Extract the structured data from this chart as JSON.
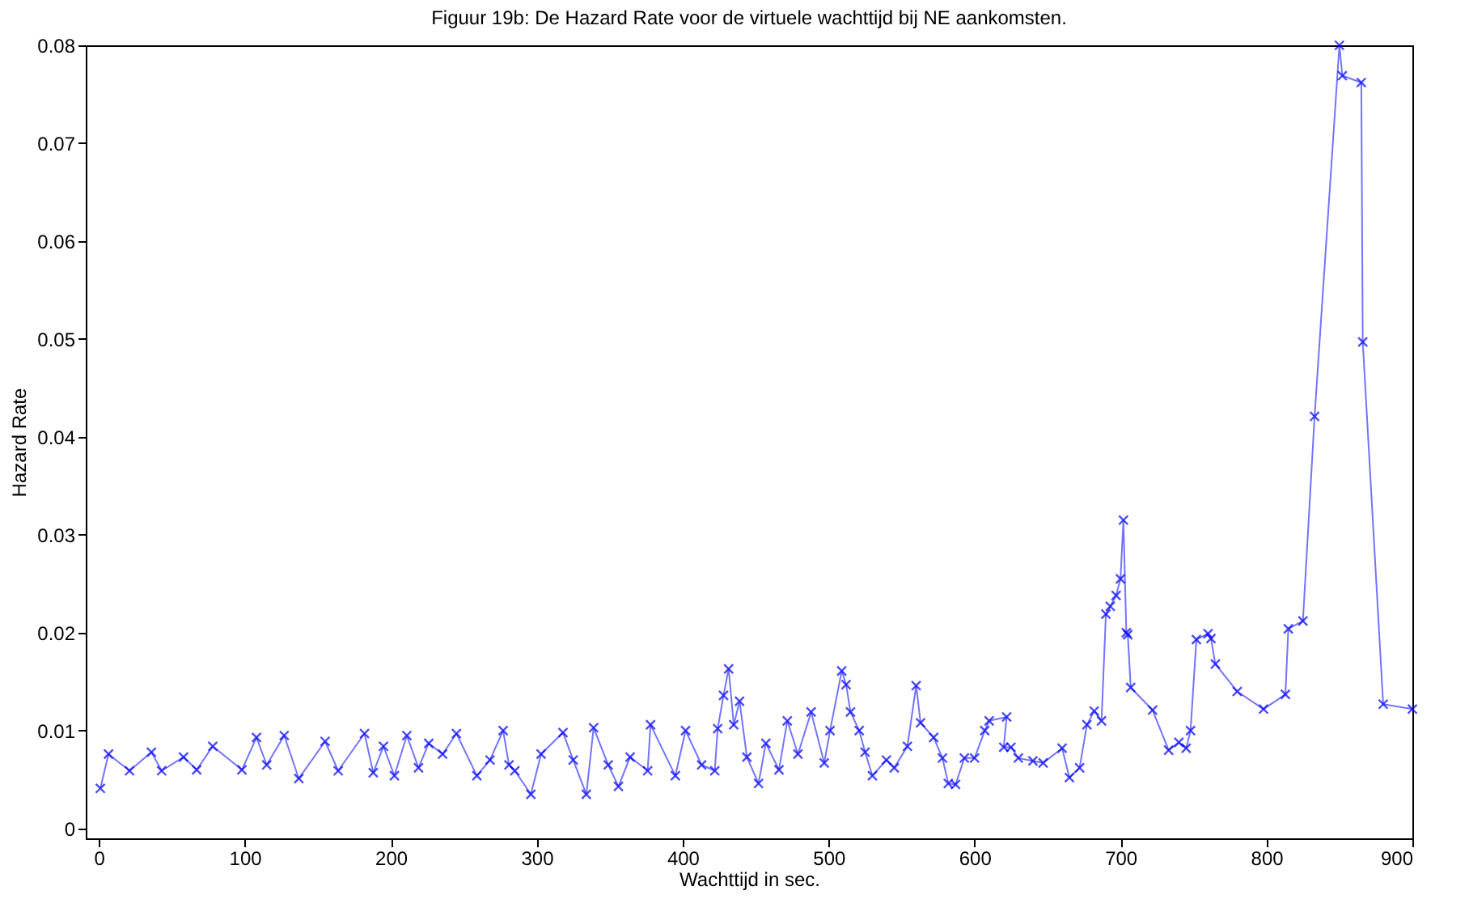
{
  "chart_data": {
    "type": "line",
    "title": "Figuur 19b: De Hazard Rate voor de virtuele wachttijd bij NE aankomsten.",
    "xlabel": "Wachttijd in sec.",
    "ylabel": "Hazard Rate",
    "xlim": [
      -9,
      900
    ],
    "ylim": [
      -0.001,
      0.08
    ],
    "xticks": [
      0,
      100,
      200,
      300,
      400,
      500,
      600,
      700,
      800,
      900
    ],
    "yticks": [
      0,
      0.01,
      0.02,
      0.03,
      0.04,
      0.05,
      0.06,
      0.07,
      0.08
    ],
    "grid": false,
    "marker": "cross",
    "line_style": "solid",
    "series": [
      {
        "color": "#0000ff",
        "x": [
          1,
          6.6,
          21,
          36,
          43,
          58,
          67,
          78,
          98,
          108,
          115,
          127,
          137,
          155,
          164,
          182,
          188,
          195,
          202.5,
          211,
          219,
          226,
          235.5,
          245,
          259,
          268,
          277,
          281,
          285,
          296,
          303,
          318,
          325,
          334,
          339,
          349,
          356,
          364,
          376,
          378,
          395,
          402,
          413,
          422,
          424,
          428,
          431.5,
          435,
          439,
          444,
          452,
          457,
          466,
          471.7,
          479,
          488,
          497,
          501,
          509,
          512,
          515,
          521,
          525,
          530,
          539.6,
          545,
          554,
          560,
          563,
          572,
          578,
          582,
          587,
          593,
          600,
          607,
          610,
          622,
          620,
          625,
          630,
          640,
          647,
          660,
          665,
          672,
          677,
          682,
          687,
          690,
          693,
          697,
          700,
          702,
          704,
          705,
          707,
          722,
          733,
          740,
          745,
          748,
          752,
          760,
          762,
          765,
          780,
          798,
          813,
          815,
          825,
          833,
          850,
          852,
          865,
          866,
          880,
          900
        ],
        "values": [
          0.0041,
          0.0076,
          0.0059,
          0.0078,
          0.0059,
          0.0073,
          0.006,
          0.0084,
          0.006,
          0.0093,
          0.0065,
          0.0095,
          0.0051,
          0.0089,
          0.0059,
          0.0097,
          0.0057,
          0.0084,
          0.0054,
          0.0095,
          0.0062,
          0.0087,
          0.0076,
          0.0097,
          0.0054,
          0.007,
          0.01,
          0.0065,
          0.0059,
          0.0035,
          0.0076,
          0.0098,
          0.007,
          0.0035,
          0.0103,
          0.0065,
          0.0043,
          0.0073,
          0.0059,
          0.0106,
          0.0054,
          0.01,
          0.0065,
          0.0059,
          0.0102,
          0.0136,
          0.0163,
          0.0106,
          0.013,
          0.0073,
          0.0046,
          0.0087,
          0.006,
          0.011,
          0.0076,
          0.0119,
          0.0067,
          0.01,
          0.0161,
          0.0147,
          0.0119,
          0.01,
          0.0078,
          0.0054,
          0.007,
          0.0062,
          0.0084,
          0.0146,
          0.0108,
          0.0093,
          0.0072,
          0.0046,
          0.0045,
          0.0072,
          0.0072,
          0.01,
          0.011,
          0.0114,
          0.0083,
          0.0083,
          0.0072,
          0.0069,
          0.0067,
          0.0082,
          0.0052,
          0.0062,
          0.0106,
          0.012,
          0.011,
          0.0219,
          0.0227,
          0.0238,
          0.0255,
          0.0315,
          0.02,
          0.0198,
          0.0144,
          0.0121,
          0.008,
          0.0088,
          0.0082,
          0.01,
          0.0193,
          0.0199,
          0.0194,
          0.0168,
          0.014,
          0.0122,
          0.0137,
          0.0204,
          0.0212,
          0.0421,
          0.08,
          0.0769,
          0.0762,
          0.0497,
          0.0127,
          0.0122
        ]
      }
    ]
  }
}
